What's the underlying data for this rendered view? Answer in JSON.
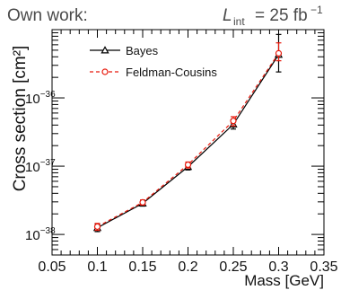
{
  "header": {
    "left_text": "Own work:",
    "lumi_symbol": "L",
    "lumi_sub": "int",
    "lumi_value": "= 25 fb",
    "lumi_exp": "−1"
  },
  "colors": {
    "bayes": "#000000",
    "feldman_cousins": "#e8190c",
    "header_text": "#4a4a4a"
  },
  "chart_data": {
    "type": "line",
    "xlabel": "Mass [GeV]",
    "ylabel": "Cross section [cm²]",
    "xlim": [
      0.05,
      0.35
    ],
    "ylim": [
      5e-39,
      1e-35
    ],
    "yscale": "log",
    "x_ticks": [
      0.05,
      0.1,
      0.15,
      0.2,
      0.25,
      0.3,
      0.35
    ],
    "x_tick_labels": [
      "0.05",
      "0.1",
      "0.15",
      "0.2",
      "0.25",
      "0.3",
      "0.35"
    ],
    "y_ticks": [
      1e-38,
      1e-37,
      1e-36
    ],
    "y_tick_labels": [
      {
        "base": "10",
        "exp": "−38"
      },
      {
        "base": "10",
        "exp": "−37"
      },
      {
        "base": "10",
        "exp": "−36"
      }
    ],
    "legend": "top-left",
    "series": [
      {
        "name": "Bayes",
        "marker": "triangle",
        "x": [
          0.1,
          0.15,
          0.2,
          0.25,
          0.3
        ],
        "y": [
          1.25e-38,
          2.85e-38,
          9.8e-38,
          4.1e-37,
          4.3e-36
        ],
        "err_low": [
          1.1e-38,
          2.6e-38,
          8.8e-38,
          3.5e-37,
          2.4e-36
        ],
        "err_high": [
          1.42e-38,
          3.1e-38,
          1.1e-37,
          4.9e-37,
          8.5e-36
        ]
      },
      {
        "name": "Feldman-Cousins",
        "marker": "open-circle",
        "x": [
          0.1,
          0.15,
          0.2,
          0.25,
          0.3
        ],
        "y": [
          1.3e-38,
          2.95e-38,
          1.05e-37,
          4.6e-37,
          4.5e-36
        ],
        "err_low": [
          1.15e-38,
          2.7e-38,
          9.4e-38,
          3.9e-37,
          3.5e-36
        ],
        "err_high": [
          1.45e-38,
          3.2e-38,
          1.15e-37,
          5.3e-37,
          6.4e-36
        ]
      }
    ]
  }
}
